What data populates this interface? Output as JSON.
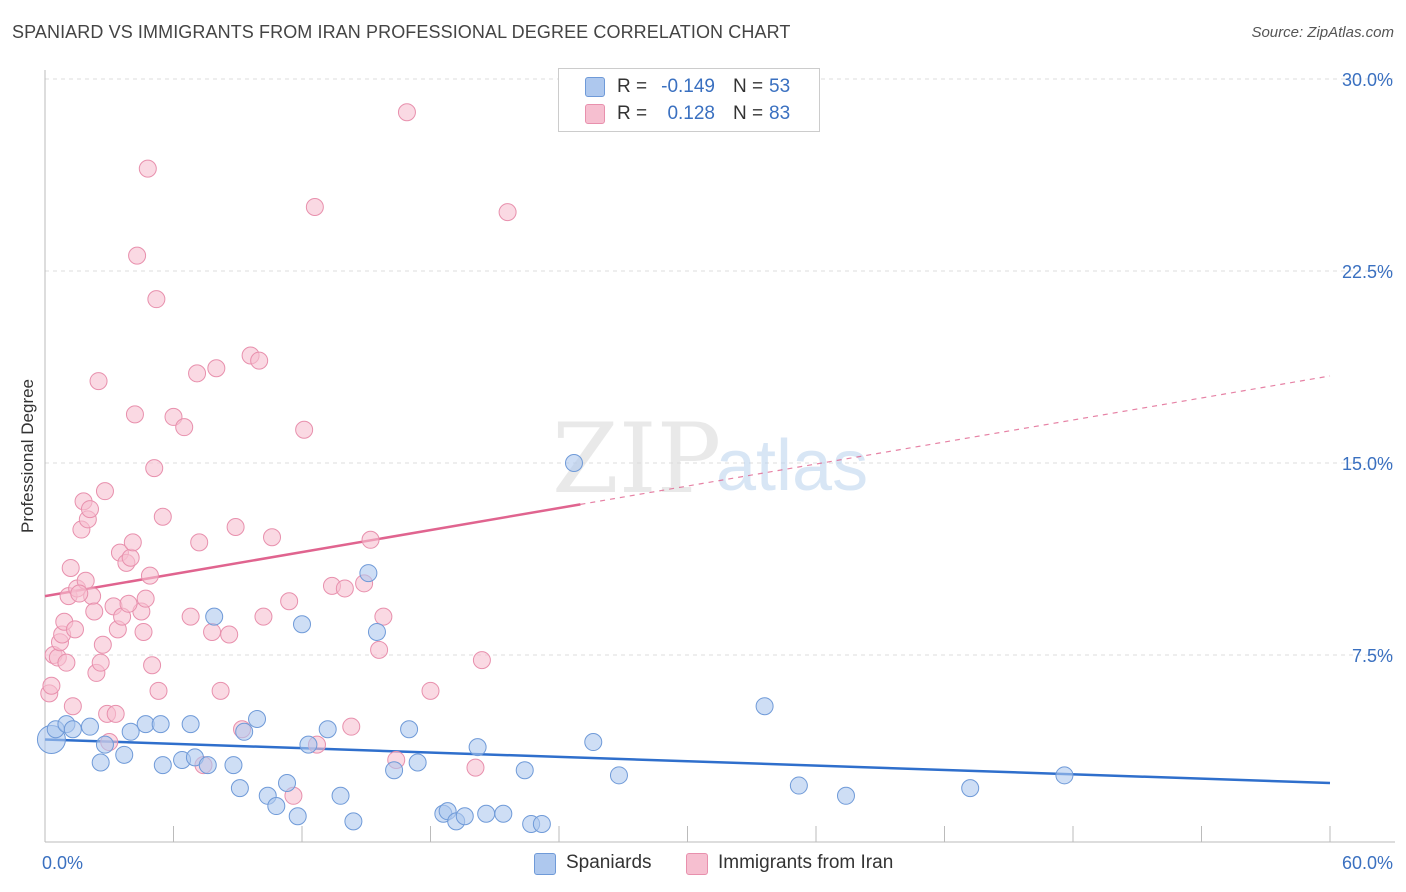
{
  "title": "SPANIARD VS IMMIGRANTS FROM IRAN PROFESSIONAL DEGREE CORRELATION CHART",
  "source": "Source: ZipAtlas.com",
  "watermark": {
    "zip": "ZIP",
    "atlas": "atlas"
  },
  "legend": {
    "series1": {
      "r_label": "R =",
      "r_value": "-0.149",
      "n_label": "N =",
      "n_value": "53"
    },
    "series2": {
      "r_label": "R =",
      "r_value": "0.128",
      "n_label": "N =",
      "n_value": "83"
    }
  },
  "colors": {
    "blue_fill": "#aec8ee",
    "blue_stroke": "#6f9ad8",
    "blue_line": "#2f6fcc",
    "pink_fill": "#f6bfd0",
    "pink_stroke": "#e890ad",
    "pink_line": "#e0648f",
    "tick_text": "#3a70c0",
    "grid": "#dddddd"
  },
  "chart_data": {
    "type": "scatter",
    "title": "SPANIARD VS IMMIGRANTS FROM IRAN PROFESSIONAL DEGREE CORRELATION CHART",
    "xlabel": "",
    "ylabel": "Professional Degree",
    "xlim": [
      0,
      60
    ],
    "ylim": [
      0,
      31
    ],
    "x_tick_labels": [
      {
        "value": 0,
        "label": "0.0%"
      },
      {
        "value": 60,
        "label": "60.0%"
      }
    ],
    "y_tick_labels": [
      {
        "value": 7.5,
        "label": "7.5%"
      },
      {
        "value": 15,
        "label": "15.0%"
      },
      {
        "value": 22.5,
        "label": "22.5%"
      },
      {
        "value": 30,
        "label": "30.0%"
      }
    ],
    "series": [
      {
        "name": "Spaniards",
        "color": "blue",
        "r": -0.149,
        "n": 53,
        "trend": {
          "x0": 0,
          "y0": 4.2,
          "x1": 60,
          "y1": 2.5,
          "solid_until": 60
        },
        "points": [
          [
            0.3,
            4.2
          ],
          [
            0.5,
            4.6
          ],
          [
            1.0,
            4.8
          ],
          [
            1.3,
            4.6
          ],
          [
            2.1,
            4.7
          ],
          [
            2.6,
            3.3
          ],
          [
            2.8,
            4.0
          ],
          [
            3.7,
            3.6
          ],
          [
            4.0,
            4.5
          ],
          [
            4.7,
            4.8
          ],
          [
            5.4,
            4.8
          ],
          [
            5.5,
            3.2
          ],
          [
            6.4,
            3.4
          ],
          [
            6.8,
            4.8
          ],
          [
            7.0,
            3.5
          ],
          [
            7.6,
            3.2
          ],
          [
            7.9,
            9.0
          ],
          [
            8.8,
            3.2
          ],
          [
            9.1,
            2.3
          ],
          [
            9.3,
            4.5
          ],
          [
            9.9,
            5.0
          ],
          [
            10.4,
            2.0
          ],
          [
            10.8,
            1.6
          ],
          [
            11.3,
            2.5
          ],
          [
            11.8,
            1.2
          ],
          [
            12.0,
            8.7
          ],
          [
            12.3,
            4.0
          ],
          [
            13.2,
            4.6
          ],
          [
            13.8,
            2.0
          ],
          [
            14.4,
            1.0
          ],
          [
            15.1,
            10.7
          ],
          [
            15.5,
            8.4
          ],
          [
            16.3,
            3.0
          ],
          [
            17.0,
            4.6
          ],
          [
            17.4,
            3.3
          ],
          [
            18.6,
            1.3
          ],
          [
            18.8,
            1.4
          ],
          [
            19.2,
            1.0
          ],
          [
            19.6,
            1.2
          ],
          [
            20.2,
            3.9
          ],
          [
            20.6,
            1.3
          ],
          [
            21.4,
            1.3
          ],
          [
            22.4,
            3.0
          ],
          [
            22.7,
            0.9
          ],
          [
            23.2,
            0.9
          ],
          [
            24.7,
            15.0
          ],
          [
            25.6,
            4.1
          ],
          [
            26.8,
            2.8
          ],
          [
            33.6,
            5.5
          ],
          [
            35.2,
            2.4
          ],
          [
            37.4,
            2.0
          ],
          [
            43.2,
            2.3
          ],
          [
            47.6,
            2.8
          ]
        ]
      },
      {
        "name": "Immigrants from Iran",
        "color": "pink",
        "r": 0.128,
        "n": 83,
        "trend": {
          "x0": 0,
          "y0": 9.8,
          "x1": 60,
          "y1": 18.4,
          "solid_until": 25
        },
        "points": [
          [
            0.2,
            6.0
          ],
          [
            0.3,
            6.3
          ],
          [
            0.4,
            7.5
          ],
          [
            0.6,
            7.4
          ],
          [
            0.7,
            8.0
          ],
          [
            0.8,
            8.3
          ],
          [
            0.9,
            8.8
          ],
          [
            1.0,
            7.2
          ],
          [
            1.1,
            9.8
          ],
          [
            1.2,
            10.9
          ],
          [
            1.3,
            5.5
          ],
          [
            1.4,
            8.5
          ],
          [
            1.5,
            10.1
          ],
          [
            1.7,
            12.4
          ],
          [
            1.8,
            13.5
          ],
          [
            1.9,
            10.4
          ],
          [
            2.0,
            12.8
          ],
          [
            2.1,
            13.2
          ],
          [
            2.2,
            9.8
          ],
          [
            2.3,
            9.2
          ],
          [
            2.4,
            6.8
          ],
          [
            2.5,
            18.2
          ],
          [
            2.6,
            7.2
          ],
          [
            2.7,
            7.9
          ],
          [
            2.8,
            13.9
          ],
          [
            2.9,
            5.2
          ],
          [
            3.0,
            4.1
          ],
          [
            3.2,
            9.4
          ],
          [
            3.3,
            5.2
          ],
          [
            3.4,
            8.5
          ],
          [
            3.5,
            11.5
          ],
          [
            3.6,
            9.0
          ],
          [
            3.8,
            11.1
          ],
          [
            4.0,
            11.3
          ],
          [
            4.1,
            11.9
          ],
          [
            4.2,
            16.9
          ],
          [
            4.3,
            23.1
          ],
          [
            4.5,
            9.2
          ],
          [
            4.6,
            8.4
          ],
          [
            4.7,
            9.7
          ],
          [
            4.8,
            26.5
          ],
          [
            4.9,
            10.6
          ],
          [
            5.0,
            7.1
          ],
          [
            5.1,
            14.8
          ],
          [
            5.2,
            21.4
          ],
          [
            5.3,
            6.1
          ],
          [
            5.5,
            12.9
          ],
          [
            6.0,
            16.8
          ],
          [
            6.5,
            16.4
          ],
          [
            6.8,
            9.0
          ],
          [
            7.1,
            18.5
          ],
          [
            7.2,
            11.9
          ],
          [
            7.4,
            3.2
          ],
          [
            7.8,
            8.4
          ],
          [
            8.0,
            18.7
          ],
          [
            8.2,
            6.1
          ],
          [
            8.6,
            8.3
          ],
          [
            9.2,
            4.6
          ],
          [
            9.6,
            19.2
          ],
          [
            10.0,
            19.0
          ],
          [
            10.2,
            9.0
          ],
          [
            10.6,
            12.1
          ],
          [
            11.4,
            9.6
          ],
          [
            11.6,
            2.0
          ],
          [
            12.1,
            16.3
          ],
          [
            12.6,
            25.0
          ],
          [
            12.7,
            4.0
          ],
          [
            13.4,
            10.2
          ],
          [
            14.0,
            10.1
          ],
          [
            14.3,
            4.7
          ],
          [
            14.9,
            10.3
          ],
          [
            15.2,
            12.0
          ],
          [
            15.6,
            7.7
          ],
          [
            16.4,
            3.4
          ],
          [
            16.9,
            28.7
          ],
          [
            18.0,
            6.1
          ],
          [
            20.1,
            3.1
          ],
          [
            20.4,
            7.3
          ],
          [
            21.6,
            24.8
          ],
          [
            15.8,
            9.0
          ],
          [
            8.9,
            12.5
          ],
          [
            3.9,
            9.5
          ],
          [
            1.6,
            9.9
          ]
        ]
      }
    ]
  },
  "bottom_legend": [
    {
      "label": "Spaniards",
      "color": "blue"
    },
    {
      "label": "Immigrants from Iran",
      "color": "pink"
    }
  ]
}
